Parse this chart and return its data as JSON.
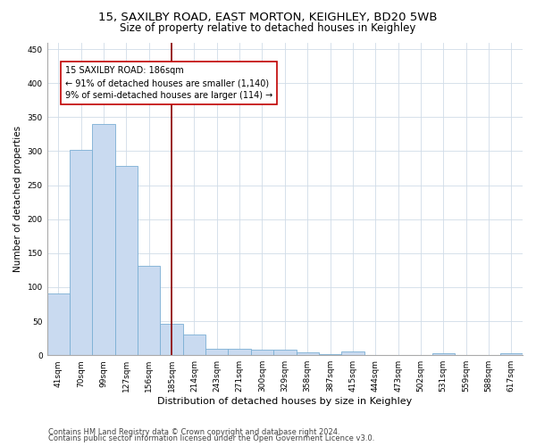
{
  "title_line1": "15, SAXILBY ROAD, EAST MORTON, KEIGHLEY, BD20 5WB",
  "title_line2": "Size of property relative to detached houses in Keighley",
  "xlabel": "Distribution of detached houses by size in Keighley",
  "ylabel": "Number of detached properties",
  "categories": [
    "41sqm",
    "70sqm",
    "99sqm",
    "127sqm",
    "156sqm",
    "185sqm",
    "214sqm",
    "243sqm",
    "271sqm",
    "300sqm",
    "329sqm",
    "358sqm",
    "387sqm",
    "415sqm",
    "444sqm",
    "473sqm",
    "502sqm",
    "531sqm",
    "559sqm",
    "588sqm",
    "617sqm"
  ],
  "values": [
    91,
    302,
    340,
    278,
    132,
    46,
    30,
    10,
    10,
    8,
    8,
    4,
    2,
    5,
    0,
    0,
    0,
    3,
    0,
    0,
    3
  ],
  "bar_color": "#c9daf0",
  "bar_edge_color": "#7bafd4",
  "vline_x": 5,
  "vline_color": "#8b0000",
  "annotation_line1": "15 SAXILBY ROAD: 186sqm",
  "annotation_line2": "← 91% of detached houses are smaller (1,140)",
  "annotation_line3": "9% of semi-detached houses are larger (114) →",
  "annotation_box_color": "#ffffff",
  "annotation_box_edge": "#c00000",
  "ylim": [
    0,
    460
  ],
  "yticks": [
    0,
    50,
    100,
    150,
    200,
    250,
    300,
    350,
    400,
    450
  ],
  "footer_line1": "Contains HM Land Registry data © Crown copyright and database right 2024.",
  "footer_line2": "Contains public sector information licensed under the Open Government Licence v3.0.",
  "bg_color": "#ffffff",
  "grid_color": "#d0dce8",
  "title1_fontsize": 9.5,
  "title2_fontsize": 8.5,
  "xlabel_fontsize": 8,
  "ylabel_fontsize": 7.5,
  "tick_fontsize": 6.5,
  "annot_fontsize": 7,
  "footer_fontsize": 6
}
